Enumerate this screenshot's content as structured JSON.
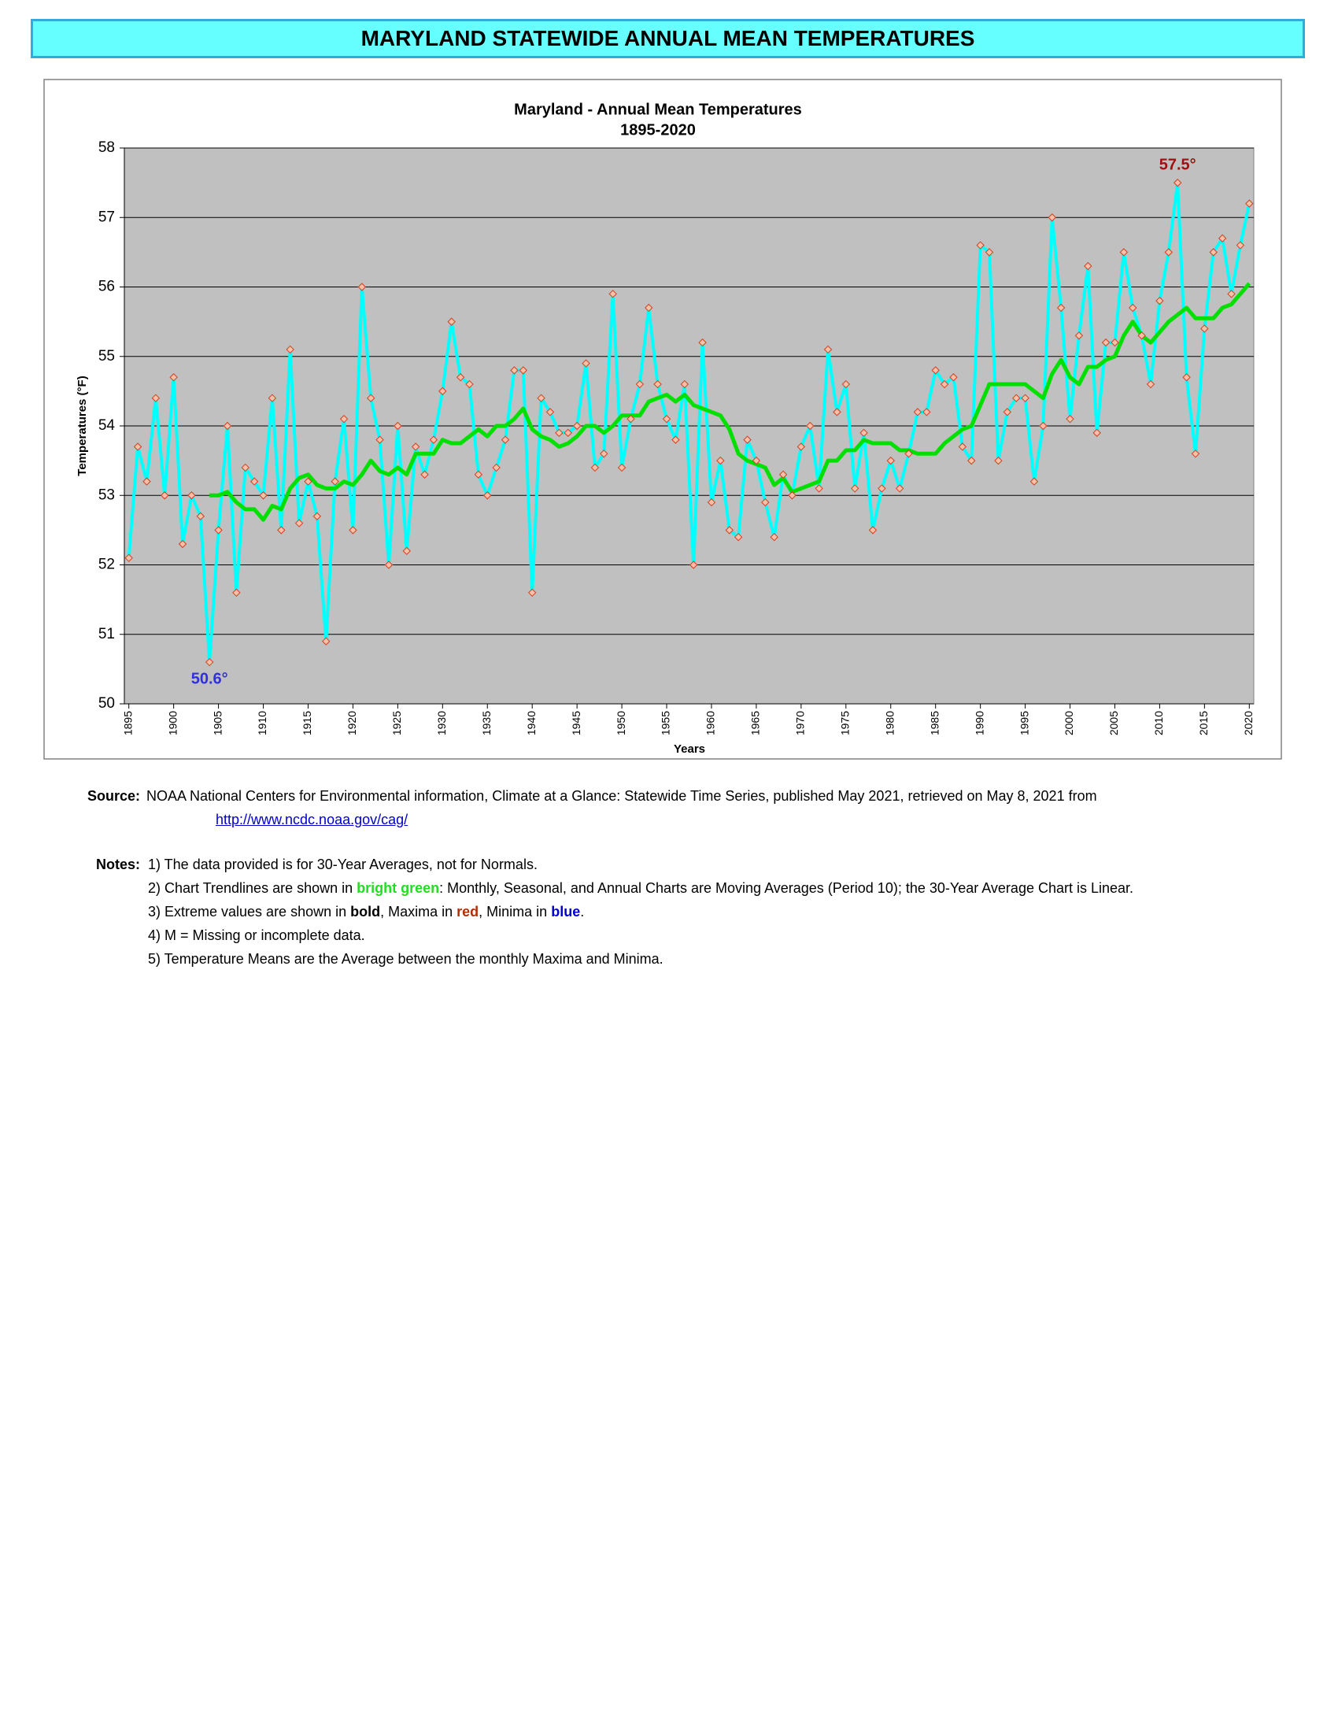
{
  "header": {
    "title": "MARYLAND STATEWIDE ANNUAL MEAN TEMPERATURES"
  },
  "chart_data": {
    "type": "line",
    "title": "Maryland - Annual Mean Temperatures",
    "subtitle": "1895-2020",
    "x_label": "Years",
    "y_label": "Temperatures (°F)",
    "x": [
      1895,
      1896,
      1897,
      1898,
      1899,
      1900,
      1901,
      1902,
      1903,
      1904,
      1905,
      1906,
      1907,
      1908,
      1909,
      1910,
      1911,
      1912,
      1913,
      1914,
      1915,
      1916,
      1917,
      1918,
      1919,
      1920,
      1921,
      1922,
      1923,
      1924,
      1925,
      1926,
      1927,
      1928,
      1929,
      1930,
      1931,
      1932,
      1933,
      1934,
      1935,
      1936,
      1937,
      1938,
      1939,
      1940,
      1941,
      1942,
      1943,
      1944,
      1945,
      1946,
      1947,
      1948,
      1949,
      1950,
      1951,
      1952,
      1953,
      1954,
      1955,
      1956,
      1957,
      1958,
      1959,
      1960,
      1961,
      1962,
      1963,
      1964,
      1965,
      1966,
      1967,
      1968,
      1969,
      1970,
      1971,
      1972,
      1973,
      1974,
      1975,
      1976,
      1977,
      1978,
      1979,
      1980,
      1981,
      1982,
      1983,
      1984,
      1985,
      1986,
      1987,
      1988,
      1989,
      1990,
      1991,
      1992,
      1993,
      1994,
      1995,
      1996,
      1997,
      1998,
      1999,
      2000,
      2001,
      2002,
      2003,
      2004,
      2005,
      2006,
      2007,
      2008,
      2009,
      2010,
      2011,
      2012,
      2013,
      2014,
      2015,
      2016,
      2017,
      2018,
      2019,
      2020
    ],
    "series": [
      {
        "color": "#00ffff",
        "marker_fill": "#f8c0a8",
        "marker_stroke": "#d04020",
        "values": [
          52.1,
          53.7,
          53.2,
          54.4,
          53.0,
          54.7,
          52.3,
          53.0,
          52.7,
          50.6,
          52.5,
          54.0,
          51.6,
          53.4,
          53.2,
          53.0,
          54.4,
          52.5,
          55.1,
          52.6,
          53.2,
          52.7,
          50.9,
          53.2,
          54.1,
          52.5,
          56.0,
          54.4,
          53.8,
          52.0,
          54.0,
          52.2,
          53.7,
          53.3,
          53.8,
          54.5,
          55.5,
          54.7,
          54.6,
          53.3,
          53.0,
          53.4,
          53.8,
          54.8,
          54.8,
          51.6,
          54.4,
          54.2,
          53.9,
          53.9,
          54.0,
          54.9,
          53.4,
          53.6,
          55.9,
          53.4,
          54.1,
          54.6,
          55.7,
          54.6,
          54.1,
          53.8,
          54.6,
          52.0,
          55.2,
          52.9,
          53.5,
          52.5,
          52.4,
          53.8,
          53.5,
          52.9,
          52.4,
          53.3,
          53.0,
          53.7,
          54.0,
          53.1,
          55.1,
          54.2,
          54.6,
          53.1,
          53.9,
          52.5,
          53.1,
          53.5,
          53.1,
          53.6,
          54.2,
          54.2,
          54.8,
          54.6,
          54.7,
          53.7,
          53.5,
          56.6,
          56.5,
          53.5,
          54.2,
          54.4,
          54.4,
          53.2,
          54.0,
          57.0,
          55.7,
          54.1,
          55.3,
          56.3,
          53.9,
          55.2,
          55.2,
          56.5,
          55.7,
          55.3,
          54.6,
          55.8,
          56.5,
          57.5,
          54.7,
          53.6,
          55.4,
          56.5,
          56.7,
          55.9,
          56.6,
          57.2
        ]
      },
      {
        "color": "#00e000",
        "values": [
          null,
          null,
          null,
          null,
          null,
          null,
          null,
          null,
          null,
          53.0,
          53.0,
          53.05,
          52.9,
          52.8,
          52.8,
          52.65,
          52.85,
          52.8,
          53.1,
          53.25,
          53.3,
          53.15,
          53.1,
          53.1,
          53.2,
          53.15,
          53.3,
          53.5,
          53.35,
          53.3,
          53.4,
          53.3,
          53.6,
          53.6,
          53.6,
          53.8,
          53.75,
          53.75,
          53.85,
          53.95,
          53.85,
          54.0,
          54.0,
          54.1,
          54.25,
          53.95,
          53.85,
          53.8,
          53.7,
          53.75,
          53.85,
          54.0,
          54.0,
          53.9,
          54.0,
          54.15,
          54.15,
          54.15,
          54.35,
          54.4,
          54.45,
          54.35,
          54.45,
          54.3,
          54.25,
          54.2,
          54.15,
          53.95,
          53.6,
          53.5,
          53.45,
          53.4,
          53.15,
          53.25,
          53.05,
          53.1,
          53.15,
          53.2,
          53.5,
          53.5,
          53.65,
          53.65,
          53.8,
          53.75,
          53.75,
          53.75,
          53.65,
          53.65,
          53.6,
          53.6,
          53.6,
          53.75,
          53.85,
          53.95,
          54.0,
          54.3,
          54.6,
          54.6,
          54.6,
          54.6,
          54.6,
          54.5,
          54.4,
          54.75,
          54.95,
          54.7,
          54.6,
          54.85,
          54.85,
          54.95,
          55.0,
          55.3,
          55.5,
          55.3,
          55.2,
          55.35,
          55.5,
          55.6,
          55.7,
          55.55,
          55.55,
          55.55,
          55.7,
          55.75,
          55.9,
          56.05
        ]
      }
    ],
    "xlim": [
      1894.5,
      2020.5
    ],
    "xticks": [
      1895,
      1900,
      1905,
      1910,
      1915,
      1920,
      1925,
      1930,
      1935,
      1940,
      1945,
      1950,
      1955,
      1960,
      1965,
      1970,
      1975,
      1980,
      1985,
      1990,
      1995,
      2000,
      2005,
      2010,
      2015,
      2020
    ],
    "ylim": [
      50,
      58
    ],
    "yticks": [
      50,
      51,
      52,
      53,
      54,
      55,
      56,
      57,
      58
    ],
    "grid": true,
    "plot_background": "#c0c0c0",
    "annotations": [
      {
        "text": "57.5°",
        "x": 2012,
        "y": 57.5,
        "color": "#a01010"
      },
      {
        "text": "50.6°",
        "x": 1904,
        "y": 50.6,
        "color": "#3030e0"
      }
    ]
  },
  "source": {
    "label": "Source:",
    "text": "NOAA National Centers for Environmental information, Climate at a Glance: Statewide Time Series, published May 2021, retrieved on May 8, 2021 from",
    "url": "http://www.ncdc.noaa.gov/cag/"
  },
  "notes": {
    "label": "Notes:",
    "items": [
      [
        "1) The data provided is for 30-Year Averages, not for Normals."
      ],
      [
        "2) Chart Trendlines are shown in ",
        "bright green",
        ": Monthly, Seasonal, and Annual Charts are Moving Averages (Period 10); the 30-Year Average Chart is Linear."
      ],
      [
        "3) Extreme values are shown in ",
        "bold",
        ", Maxima in ",
        "red",
        ", Minima in ",
        "blue",
        "."
      ],
      [
        "4) M = Missing or incomplete data."
      ],
      [
        "5) Temperature Means are the Average between the monthly Maxima and Minima."
      ]
    ]
  }
}
